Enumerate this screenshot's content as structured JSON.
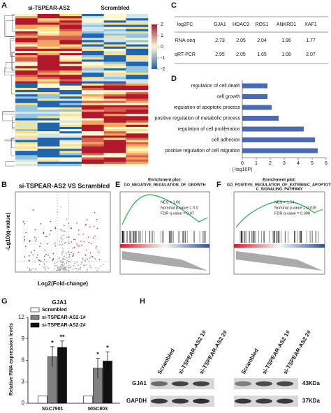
{
  "panels": [
    "A",
    "B",
    "C",
    "D",
    "E",
    "F",
    "G",
    "H"
  ],
  "heatmap": {
    "groups": [
      "si-TSPEAR-AS2",
      "Scrambled"
    ],
    "scale_ticks": [
      2,
      1,
      0,
      -1,
      -2
    ]
  },
  "table": {
    "header": [
      "log2FC",
      "GJA1",
      "HDAC9",
      "ROS1",
      "ANKRD1",
      "XAF1"
    ],
    "rows": [
      [
        "RNA-seq",
        2.73,
        2.05,
        2.04,
        1.96,
        1.77
      ],
      [
        "qRT-PCR",
        2.95,
        2.05,
        1.65,
        1.08,
        2.07
      ]
    ]
  },
  "volcano": {
    "title": "si-TSPEAR-AS2 VS Scrambled",
    "y_label": "-Lg10(q-value)",
    "x_label": "Log2(Fold-change)"
  },
  "gsea": [
    {
      "heading": "Enrichment plot:",
      "title_lines": [
        "GO_NEGATIVE_REGULATION_OF_GROWTH"
      ],
      "stats": [
        "NES = 1.60",
        "Nominal p-value = 0.0",
        "FDR q-value = 0.07"
      ]
    },
    {
      "heading": "Enrichment plot:",
      "title_lines": [
        "GO_POSITIVE_REGULATION_OF_EXTRINSIC_APOPTOTI",
        "C_SIGNALING_PATHWAY"
      ],
      "stats": [
        "NES = 1.54",
        "Nominal p-value = 0.015",
        "FDR q-value = 0.098"
      ]
    }
  ],
  "chart_data": [
    {
      "type": "hbar",
      "categories": [
        "regulation of cell death",
        "cell growth",
        "regulation of apoptotic process",
        "positive regulation of metabolic process",
        "regulation of cell proliferation",
        "cell adhesion",
        "positive regulation of cell migration"
      ],
      "values": [
        1.8,
        1.8,
        2.1,
        2.6,
        4.4,
        5.2,
        5.4
      ],
      "color": "#4a6bb4",
      "xlim": [
        0,
        6
      ],
      "xticks": [
        0,
        1,
        2,
        3,
        4,
        5,
        6
      ],
      "x_label": "(-log10P)"
    },
    {
      "type": "bar",
      "title": "GJA1",
      "y_label": "Relative RNA expression levels",
      "categories": [
        "SGC7901",
        "MGC803"
      ],
      "ylim": [
        0,
        12
      ],
      "yticks": [
        0,
        3,
        6,
        9,
        12
      ],
      "series": [
        {
          "name": "Scrambled",
          "color": "#ffffff",
          "values": [
            1,
            1
          ]
        },
        {
          "name": "si-TSPEAR-AS2-1#",
          "color": "#808080",
          "values": [
            6.5,
            4.9
          ],
          "errors": [
            1.4,
            1.4
          ],
          "significance": [
            "*",
            "*"
          ]
        },
        {
          "name": "si-TSPEAR-AS2-2#",
          "color": "#111111",
          "values": [
            7.8,
            5.9
          ],
          "errors": [
            0.9,
            1.3
          ],
          "significance": [
            "**",
            "*"
          ]
        }
      ]
    }
  ],
  "blot": {
    "lanes": [
      "Scrambled",
      "si-TSPEAR-AS2 1#",
      "si-TSPEAR-AS2 2#",
      "Scrambled",
      "si-TSPEAR-AS2 1#",
      "si-TSPEAR-AS2 2#"
    ],
    "rows": [
      {
        "label": "GJA1",
        "size": "43KDa"
      },
      {
        "label": "GAPDH",
        "size": "37KDa"
      }
    ]
  }
}
